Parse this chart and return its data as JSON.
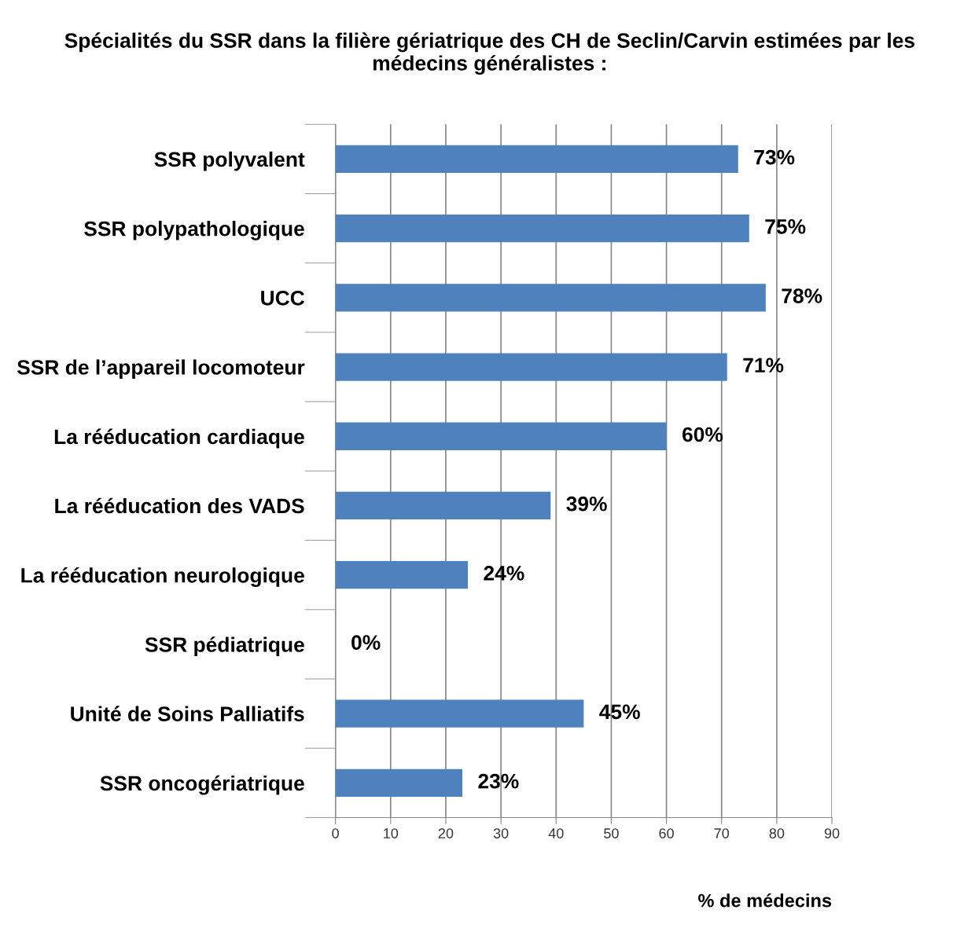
{
  "chart_data": {
    "type": "bar",
    "orientation": "horizontal",
    "title": "Spécialités du SSR dans la filière gériatrique des CH de Seclin/Carvin estimées par les médecins généralistes :",
    "categories": [
      "SSR polyvalent",
      "SSR polypathologique",
      "UCC",
      "SSR de l’appareil locomoteur",
      "La rééducation cardiaque",
      "La rééducation des VADS",
      "La rééducation neurologique",
      "SSR pédiatrique",
      "Unité de Soins Palliatifs",
      "SSR oncogériatrique"
    ],
    "values": [
      73,
      75,
      78,
      71,
      60,
      39,
      24,
      0,
      45,
      23
    ],
    "value_labels": [
      "73%",
      "75%",
      "78%",
      "71%",
      "60%",
      "39%",
      "24%",
      "0%",
      "45%",
      "23%"
    ],
    "color": "#4f81bd",
    "xlabel": "% de médecins",
    "xlim": [
      0,
      90
    ],
    "xticks": [
      0,
      10,
      20,
      30,
      40,
      50,
      60,
      70,
      80,
      90
    ],
    "grid": "x",
    "legend": false
  }
}
